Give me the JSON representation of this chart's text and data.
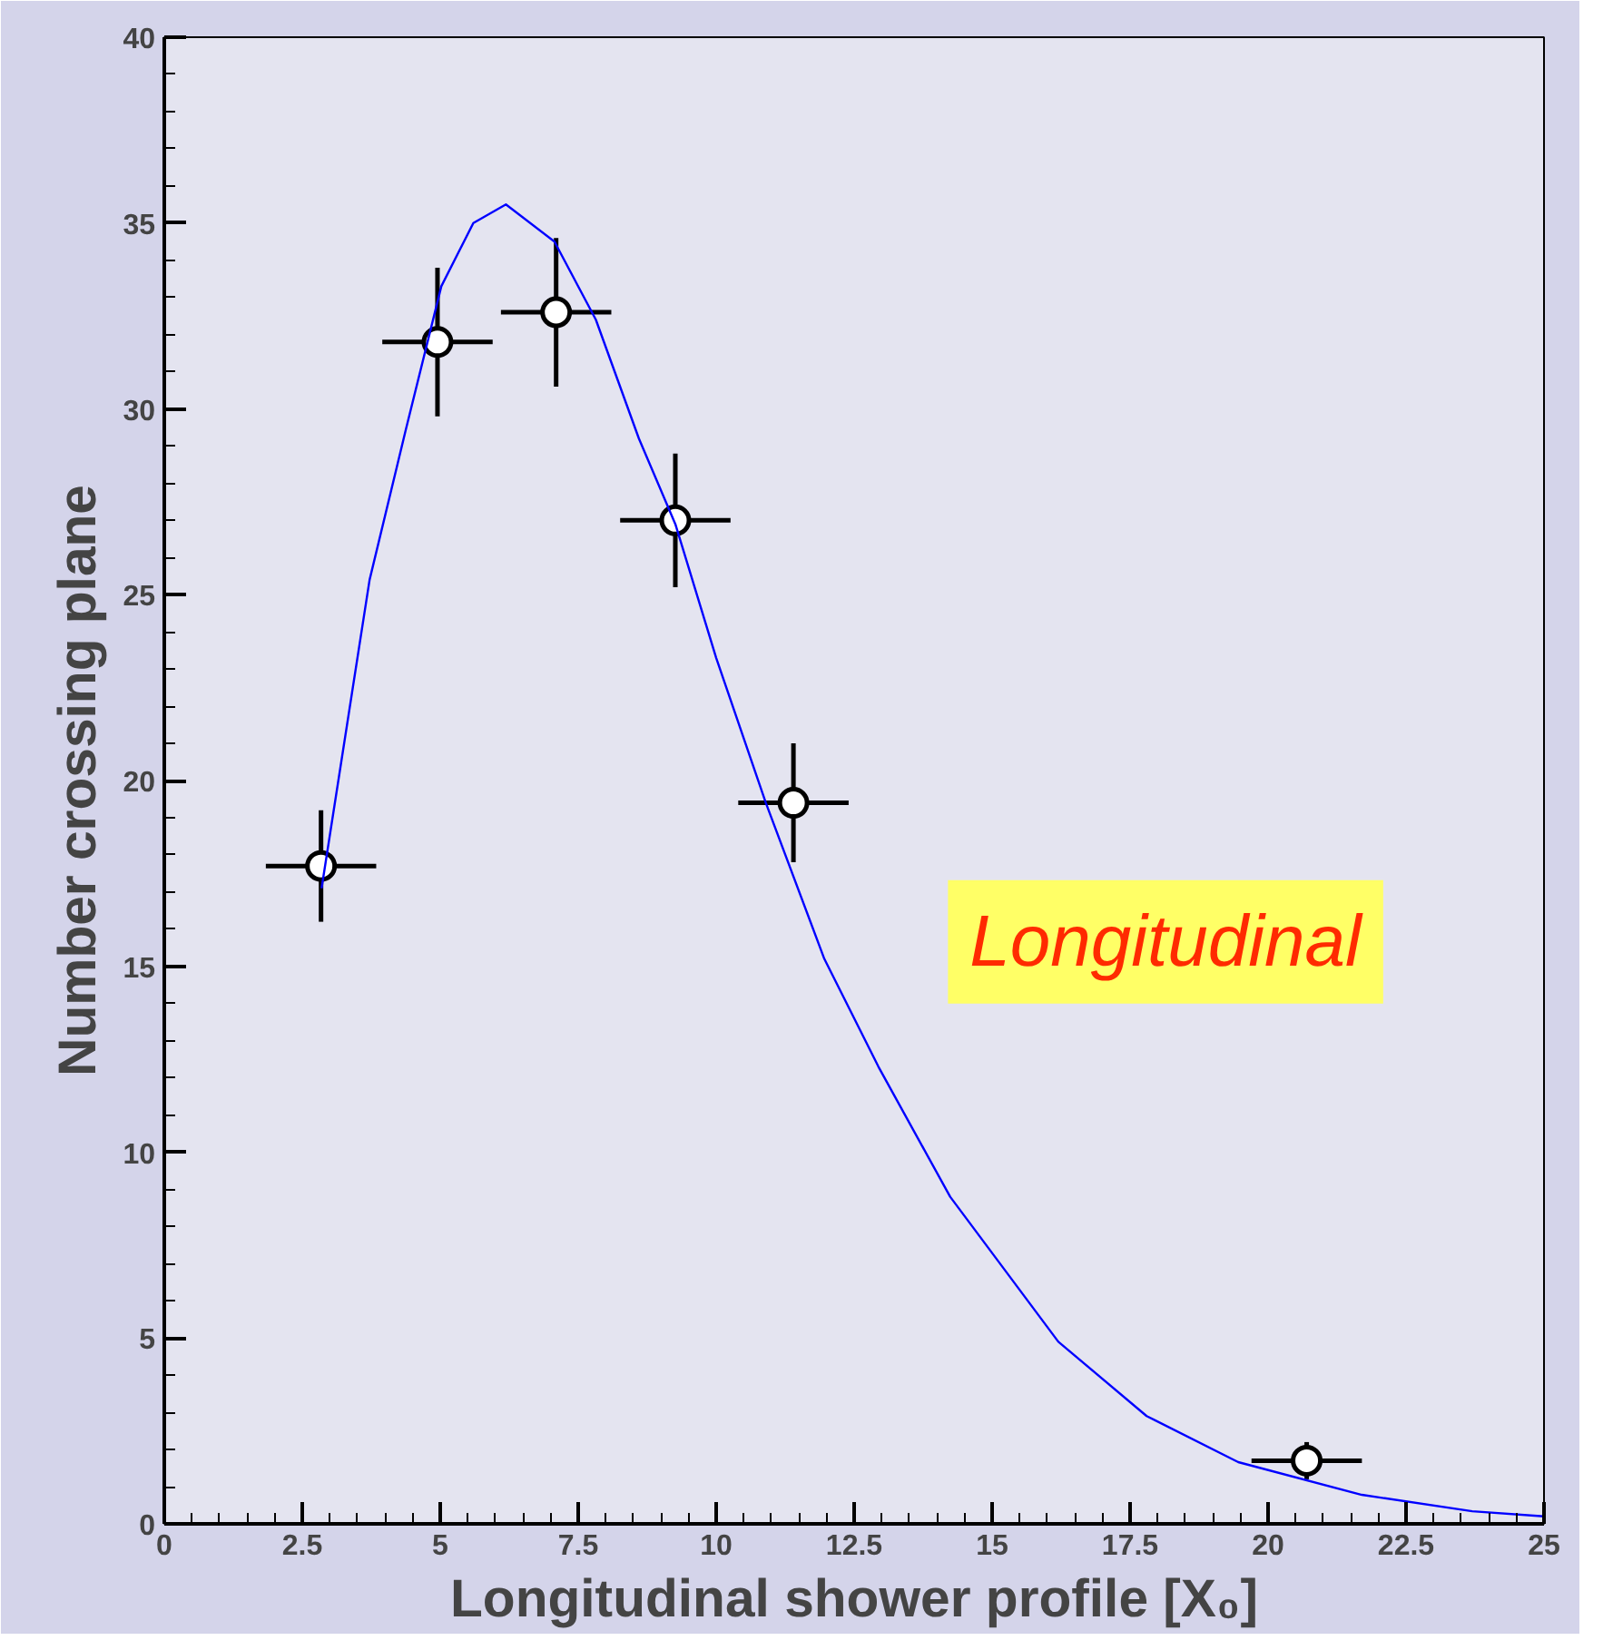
{
  "chart_data": {
    "type": "scatter",
    "xlabel": "Longitudinal shower profile [X₀]",
    "ylabel": "Number crossing plane",
    "xlim": [
      0,
      25
    ],
    "ylim": [
      0,
      40
    ],
    "xticks": [
      0,
      2.5,
      5,
      7.5,
      10,
      12.5,
      15,
      17.5,
      20,
      22.5,
      25
    ],
    "yticks": [
      0,
      5,
      10,
      15,
      20,
      25,
      30,
      35,
      40
    ],
    "grid": false,
    "annotations": [
      "Longitudinal"
    ],
    "series": [
      {
        "color": "#000000",
        "marker": "circle",
        "x": [
          2.84,
          4.95,
          7.1,
          9.26,
          11.4,
          20.7
        ],
        "values": [
          17.7,
          31.8,
          32.6,
          27.0,
          19.4,
          1.7
        ],
        "errors": [
          1.5,
          2.0,
          2.0,
          1.8,
          1.6,
          0.5
        ],
        "xerrors": [
          1.0,
          1.0,
          1.0,
          1.0,
          1.0,
          1.0
        ]
      },
      {
        "type": "line",
        "color": "#0000ff",
        "line_style": "solid",
        "marker": "none",
        "x": [
          2.85,
          3.72,
          4.37,
          5.02,
          5.6,
          6.19,
          7.07,
          7.82,
          8.6,
          9.26,
          10.0,
          10.9,
          11.96,
          12.94,
          14.24,
          16.2,
          17.8,
          19.46,
          21.7,
          23.7,
          25
        ],
        "values": [
          17.1,
          25.4,
          29.4,
          33.3,
          35.0,
          35.5,
          34.5,
          32.4,
          29.2,
          26.9,
          23.3,
          19.4,
          15.2,
          12.3,
          8.8,
          4.9,
          2.9,
          1.66,
          0.78,
          0.34,
          0.2
        ]
      }
    ]
  }
}
